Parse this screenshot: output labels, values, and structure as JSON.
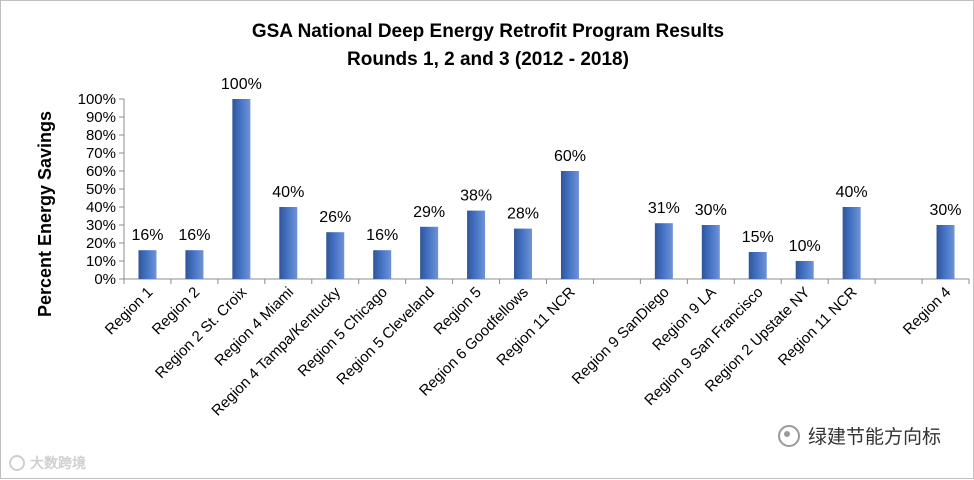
{
  "chart_data": {
    "type": "bar",
    "title": "GSA National Deep Energy Retrofit Program Results",
    "subtitle": "Rounds 1, 2 and 3 (2012 - 2018)",
    "xlabel": "",
    "ylabel": "Percent Energy Savings",
    "ylim": [
      0,
      100
    ],
    "y_ticks": [
      "0%",
      "10%",
      "20%",
      "30%",
      "40%",
      "50%",
      "60%",
      "70%",
      "80%",
      "90%",
      "100%"
    ],
    "grid": false,
    "bar_color": "#4472c4",
    "categories": [
      "Region 1",
      "Region 2",
      "Region 2  St. Croix",
      "Region 4 Miami",
      "Region 4 Tampa/Kentucky",
      "Region 5 Chicago",
      "Region 5 Cleveland",
      "Region 5",
      "Region 6 Goodfellows",
      "Region  11 NCR",
      "",
      "Region 9 SanDiego",
      "Region 9 LA",
      "Region 9 San Francisco",
      "Region 2 Upstate NY",
      "Region 11 NCR",
      "",
      "Region 4"
    ],
    "values": [
      16,
      16,
      100,
      40,
      26,
      16,
      29,
      38,
      28,
      60,
      null,
      31,
      30,
      15,
      10,
      40,
      null,
      30
    ],
    "data_labels": [
      "16%",
      "16%",
      "100%",
      "40%",
      "26%",
      "16%",
      "29%",
      "38%",
      "28%",
      "60%",
      "",
      "31%",
      "30%",
      "15%",
      "10%",
      "40%",
      "",
      "30%"
    ]
  },
  "watermarks": {
    "right": "绿建节能方向标",
    "left": "大数跨境"
  }
}
